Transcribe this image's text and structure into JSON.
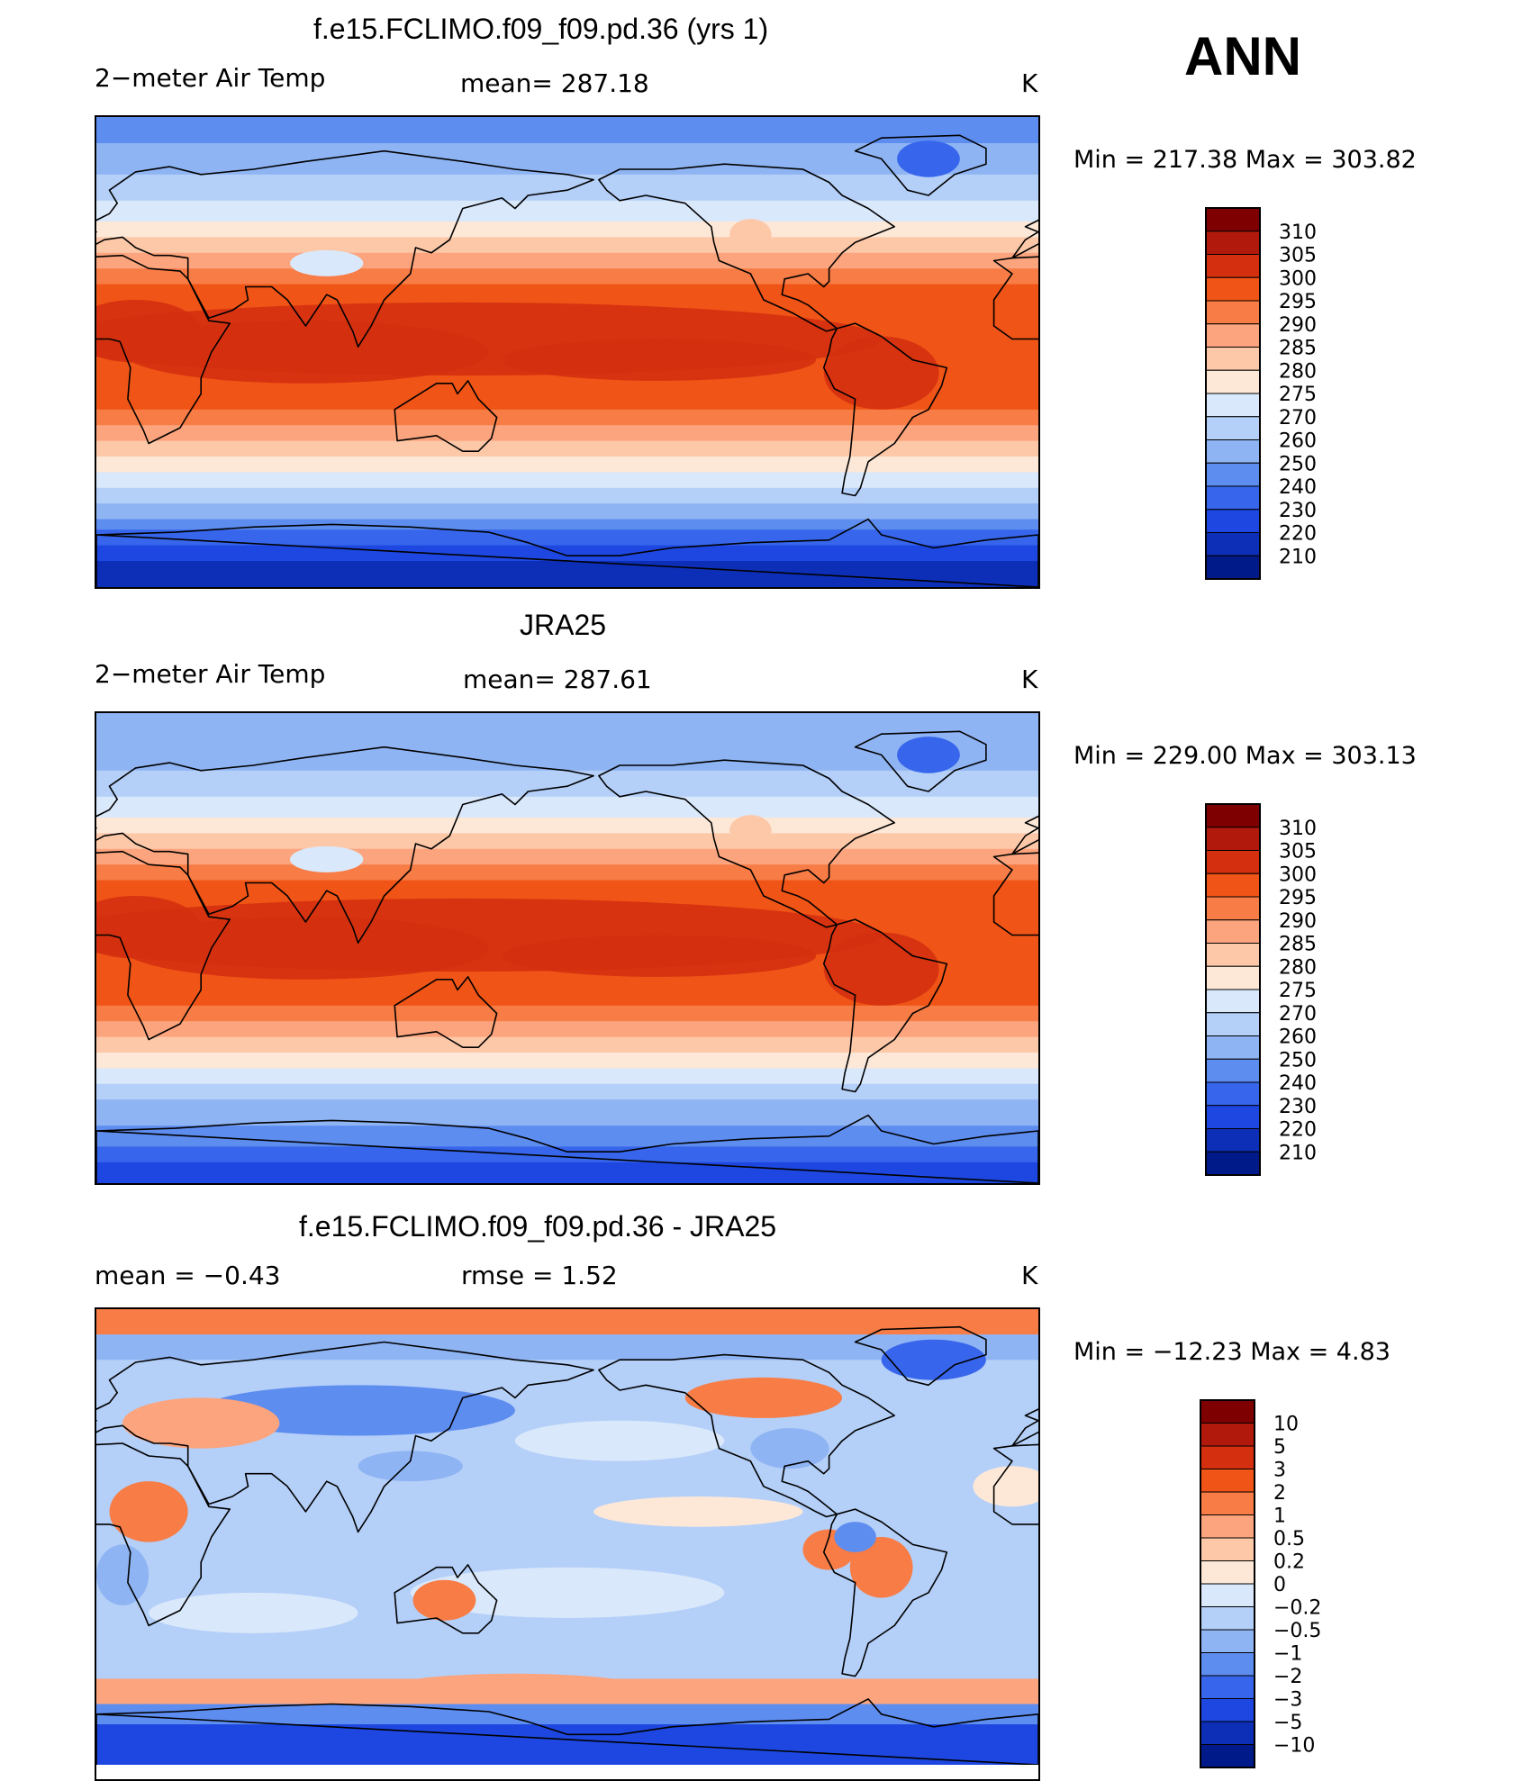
{
  "season": "ANN",
  "units": "K",
  "land_icon": "continent-outline-icon",
  "panels": [
    {
      "id": "model",
      "title": "f.e15.FCLIMO.f09_f09.pd.36 (yrs 1)",
      "variable": "2−meter Air Temp",
      "stat_text": "mean=  287.18",
      "units": "K",
      "minmax": "Min  =  217.38  Max  =  303.82",
      "min": 217.38,
      "max": 303.82
    },
    {
      "id": "obs",
      "title": "JRA25",
      "variable": "2−meter Air Temp",
      "stat_text": "mean=  287.61",
      "units": "K",
      "minmax": "Min  =  229.00  Max  =  303.13",
      "min": 229.0,
      "max": 303.13
    },
    {
      "id": "diff",
      "title": "f.e15.FCLIMO.f09_f09.pd.36 - JRA25",
      "mean_text": "mean =    −0.43",
      "rmse_text": "rmse =     1.52",
      "units": "K",
      "minmax": "Min  =  −12.23  Max  =      4.83",
      "min": -12.23,
      "max": 4.83
    }
  ],
  "chart_data": [
    {
      "type": "heatmap",
      "title": "f.e15.FCLIMO.f09_f09.pd.36 (yrs 1)",
      "variable": "2-meter Air Temp",
      "units": "K",
      "mean": 287.18,
      "min": 217.38,
      "max": 303.82,
      "x": "longitude 0 to 360",
      "y": "latitude -90 to 90",
      "colorbar": {
        "levels": [
          "310",
          "305",
          "300",
          "295",
          "290",
          "285",
          "280",
          "275",
          "270",
          "260",
          "250",
          "240",
          "230",
          "220",
          "210"
        ],
        "colors": [
          "#7f0000",
          "#b0190b",
          "#d4300f",
          "#f05416",
          "#f87c45",
          "#fca47d",
          "#fdc8a8",
          "#fde8d8",
          "#d9e8fb",
          "#b4cff8",
          "#8fb4f3",
          "#5e8df0",
          "#3766ec",
          "#1d47e0",
          "#0d2fb8",
          "#001a8a"
        ]
      }
    },
    {
      "type": "heatmap",
      "title": "JRA25",
      "variable": "2-meter Air Temp",
      "units": "K",
      "mean": 287.61,
      "min": 229.0,
      "max": 303.13,
      "x": "longitude 0 to 360",
      "y": "latitude -90 to 90",
      "colorbar": {
        "levels": [
          "310",
          "305",
          "300",
          "295",
          "290",
          "285",
          "280",
          "275",
          "270",
          "260",
          "250",
          "240",
          "230",
          "220",
          "210"
        ],
        "colors": [
          "#7f0000",
          "#b0190b",
          "#d4300f",
          "#f05416",
          "#f87c45",
          "#fca47d",
          "#fdc8a8",
          "#fde8d8",
          "#d9e8fb",
          "#b4cff8",
          "#8fb4f3",
          "#5e8df0",
          "#3766ec",
          "#1d47e0",
          "#0d2fb8",
          "#001a8a"
        ]
      }
    },
    {
      "type": "heatmap",
      "title": "f.e15.FCLIMO.f09_f09.pd.36 - JRA25",
      "units": "K",
      "mean": -0.43,
      "rmse": 1.52,
      "min": -12.23,
      "max": 4.83,
      "x": "longitude 0 to 360",
      "y": "latitude -90 to 90",
      "colorbar": {
        "levels": [
          "10",
          "5",
          "3",
          "2",
          "1",
          "0.5",
          "0.2",
          "0",
          "−0.2",
          "−0.5",
          "−1",
          "−2",
          "−3",
          "−5",
          "−10"
        ],
        "colors": [
          "#7f0000",
          "#b0190b",
          "#d4300f",
          "#f05416",
          "#f87c45",
          "#fca47d",
          "#fdc8a8",
          "#fde8d8",
          "#d9e8fb",
          "#b4cff8",
          "#8fb4f3",
          "#5e8df0",
          "#3766ec",
          "#1d47e0",
          "#0d2fb8",
          "#001a8a"
        ]
      }
    }
  ]
}
